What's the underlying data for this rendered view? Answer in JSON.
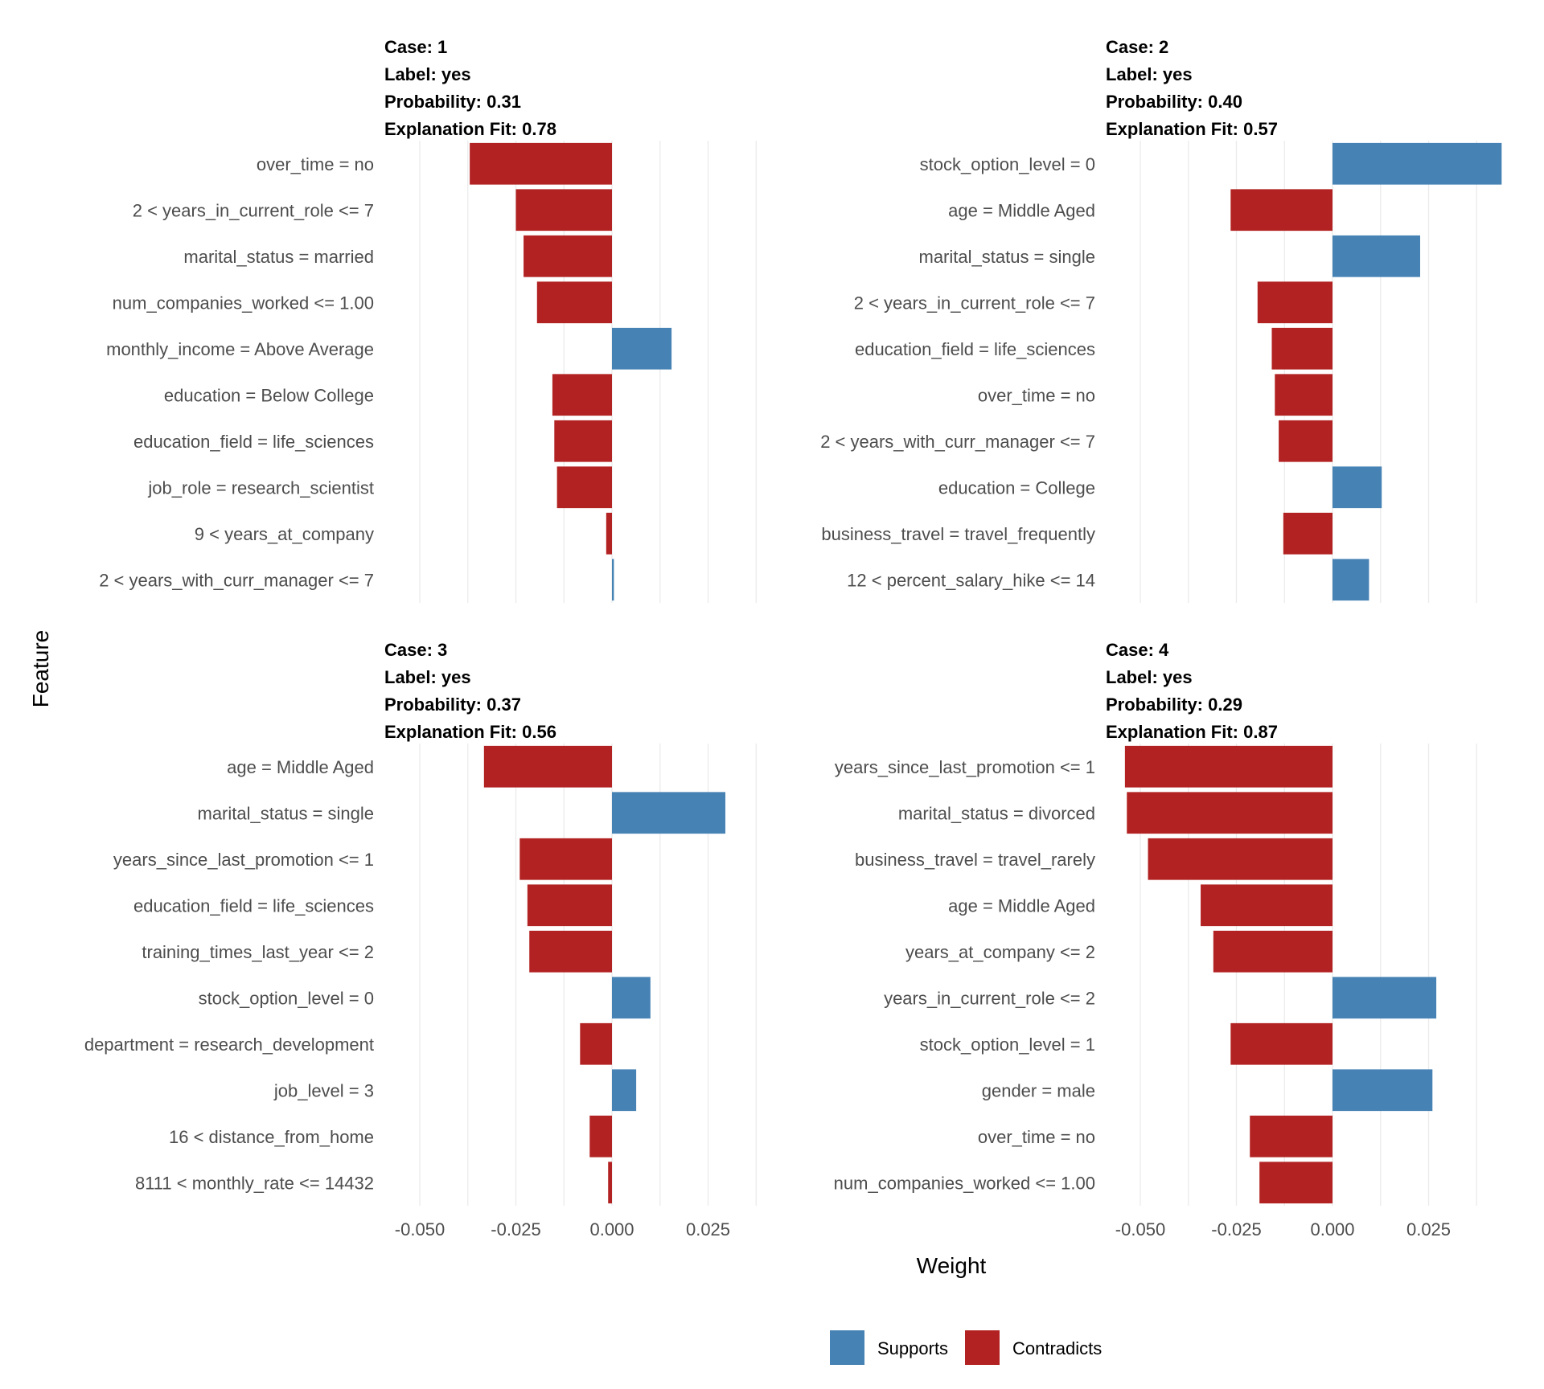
{
  "chart_data": {
    "type": "bar",
    "orientation": "horizontal",
    "xlabel": "Weight",
    "ylabel": "Feature",
    "xlim": [
      -0.058,
      0.047
    ],
    "x_ticks": [
      -0.05,
      -0.025,
      0.0,
      0.025
    ],
    "x_tick_labels": [
      "-0.050",
      "-0.025",
      "0.000",
      "0.025"
    ],
    "grid": true,
    "colors": {
      "Supports": "#4682B4",
      "Contradicts": "#B22222"
    },
    "legend": {
      "position": "bottom",
      "items": [
        {
          "key": "Supports",
          "label": "Supports"
        },
        {
          "key": "Contradicts",
          "label": "Contradicts"
        }
      ]
    },
    "facets": [
      {
        "title_lines": [
          "Case: 1",
          "Label: yes",
          "Probability: 0.31",
          "Explanation Fit: 0.78"
        ],
        "features": [
          {
            "label": "over_time = no",
            "weight": -0.037,
            "type": "Contradicts"
          },
          {
            "label": "2 < years_in_current_role <= 7",
            "weight": -0.025,
            "type": "Contradicts"
          },
          {
            "label": "marital_status = married",
            "weight": -0.023,
            "type": "Contradicts"
          },
          {
            "label": "num_companies_worked <= 1.00",
            "weight": -0.0195,
            "type": "Contradicts"
          },
          {
            "label": "monthly_income = Above Average",
            "weight": 0.0155,
            "type": "Supports"
          },
          {
            "label": "education = Below College",
            "weight": -0.0155,
            "type": "Contradicts"
          },
          {
            "label": "education_field = life_sciences",
            "weight": -0.015,
            "type": "Contradicts"
          },
          {
            "label": "job_role = research_scientist",
            "weight": -0.0143,
            "type": "Contradicts"
          },
          {
            "label": "9 < years_at_company",
            "weight": -0.0015,
            "type": "Contradicts"
          },
          {
            "label": "2 < years_with_curr_manager <= 7",
            "weight": 0.0005,
            "type": "Supports"
          }
        ]
      },
      {
        "title_lines": [
          "Case: 2",
          "Label: yes",
          "Probability: 0.40",
          "Explanation Fit: 0.57"
        ],
        "features": [
          {
            "label": "stock_option_level = 0",
            "weight": 0.044,
            "type": "Supports"
          },
          {
            "label": "age = Middle Aged",
            "weight": -0.0265,
            "type": "Contradicts"
          },
          {
            "label": "marital_status = single",
            "weight": 0.0228,
            "type": "Supports"
          },
          {
            "label": "2 < years_in_current_role <= 7",
            "weight": -0.0195,
            "type": "Contradicts"
          },
          {
            "label": "education_field = life_sciences",
            "weight": -0.0158,
            "type": "Contradicts"
          },
          {
            "label": "over_time = no",
            "weight": -0.015,
            "type": "Contradicts"
          },
          {
            "label": "2 < years_with_curr_manager <= 7",
            "weight": -0.014,
            "type": "Contradicts"
          },
          {
            "label": "education = College",
            "weight": 0.0128,
            "type": "Supports"
          },
          {
            "label": "business_travel = travel_frequently",
            "weight": -0.0128,
            "type": "Contradicts"
          },
          {
            "label": "12 < percent_salary_hike <= 14",
            "weight": 0.0095,
            "type": "Supports"
          }
        ]
      },
      {
        "title_lines": [
          "Case: 3",
          "Label: yes",
          "Probability: 0.37",
          "Explanation Fit: 0.56"
        ],
        "features": [
          {
            "label": "age = Middle Aged",
            "weight": -0.0333,
            "type": "Contradicts"
          },
          {
            "label": "marital_status = single",
            "weight": 0.0295,
            "type": "Supports"
          },
          {
            "label": "years_since_last_promotion <= 1",
            "weight": -0.024,
            "type": "Contradicts"
          },
          {
            "label": "education_field = life_sciences",
            "weight": -0.022,
            "type": "Contradicts"
          },
          {
            "label": "training_times_last_year <= 2",
            "weight": -0.0215,
            "type": "Contradicts"
          },
          {
            "label": "stock_option_level = 0",
            "weight": 0.01,
            "type": "Supports"
          },
          {
            "label": "department = research_development",
            "weight": -0.0083,
            "type": "Contradicts"
          },
          {
            "label": "job_level = 3",
            "weight": 0.0063,
            "type": "Supports"
          },
          {
            "label": "16 < distance_from_home",
            "weight": -0.0058,
            "type": "Contradicts"
          },
          {
            "label": "8111 < monthly_rate <= 14432",
            "weight": -0.001,
            "type": "Contradicts"
          }
        ]
      },
      {
        "title_lines": [
          "Case: 4",
          "Label: yes",
          "Probability: 0.29",
          "Explanation Fit: 0.87"
        ],
        "features": [
          {
            "label": "years_since_last_promotion <= 1",
            "weight": -0.054,
            "type": "Contradicts"
          },
          {
            "label": "marital_status = divorced",
            "weight": -0.0535,
            "type": "Contradicts"
          },
          {
            "label": "business_travel = travel_rarely",
            "weight": -0.048,
            "type": "Contradicts"
          },
          {
            "label": "age = Middle Aged",
            "weight": -0.0343,
            "type": "Contradicts"
          },
          {
            "label": "years_at_company <= 2",
            "weight": -0.031,
            "type": "Contradicts"
          },
          {
            "label": "years_in_current_role <= 2",
            "weight": 0.027,
            "type": "Supports"
          },
          {
            "label": "stock_option_level = 1",
            "weight": -0.0265,
            "type": "Contradicts"
          },
          {
            "label": "gender = male",
            "weight": 0.026,
            "type": "Supports"
          },
          {
            "label": "over_time = no",
            "weight": -0.0215,
            "type": "Contradicts"
          },
          {
            "label": "num_companies_worked <= 1.00",
            "weight": -0.019,
            "type": "Contradicts"
          }
        ]
      }
    ]
  }
}
